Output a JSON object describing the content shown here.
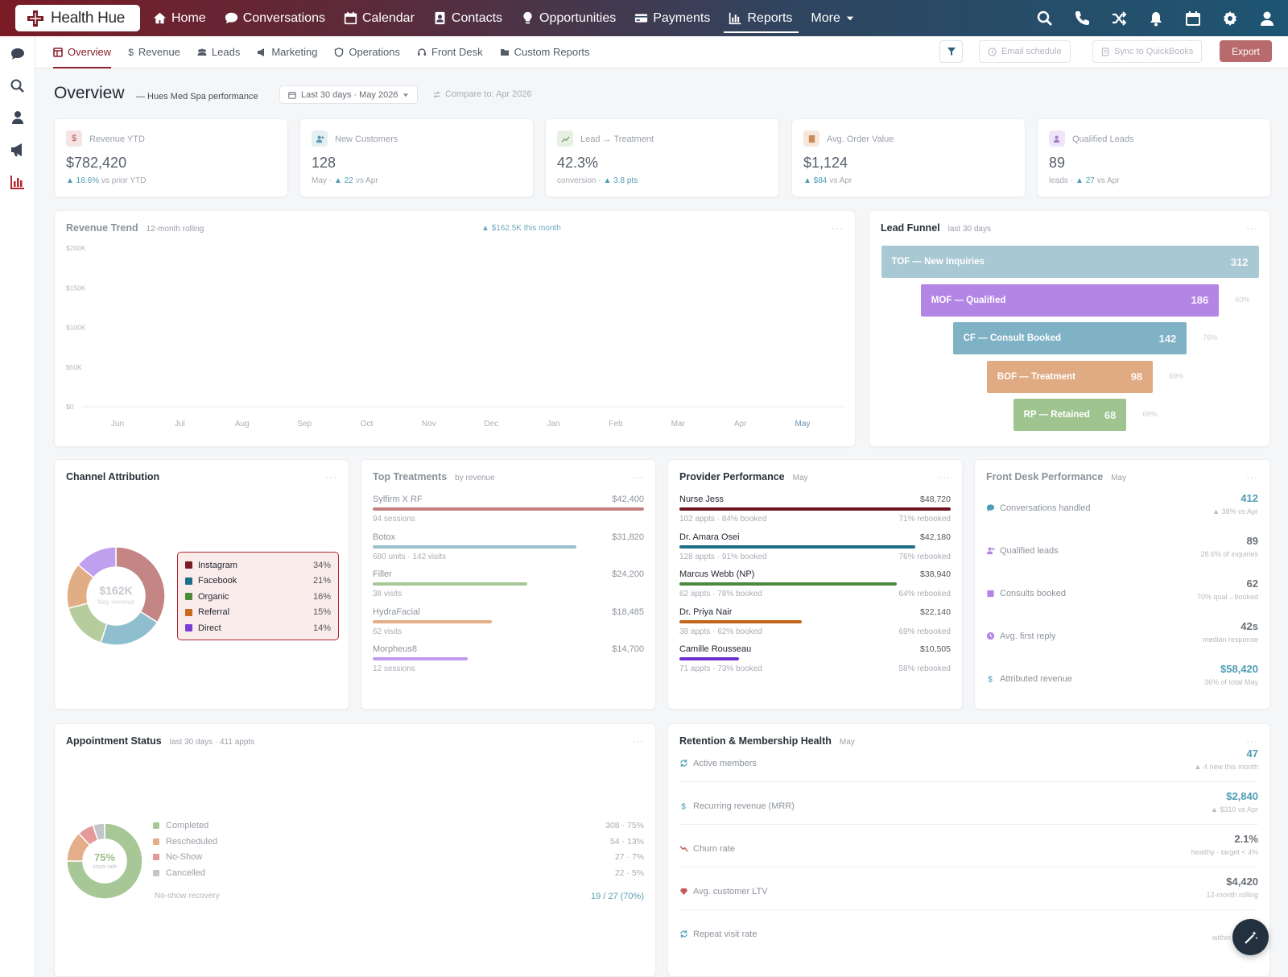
{
  "app": {
    "name": "Health Hue"
  },
  "nav": {
    "items": [
      {
        "label": "Home",
        "icon": "home-icon"
      },
      {
        "label": "Conversations",
        "icon": "chat-icon"
      },
      {
        "label": "Calendar",
        "icon": "calendar-icon"
      },
      {
        "label": "Contacts",
        "icon": "contact-card-icon"
      },
      {
        "label": "Opportunities",
        "icon": "lightbulb-icon"
      },
      {
        "label": "Payments",
        "icon": "credit-card-icon"
      },
      {
        "label": "Reports",
        "icon": "bar-chart-icon",
        "active": true
      },
      {
        "label": "More",
        "icon": "caret-down-icon"
      }
    ],
    "right_icons": [
      "search-icon",
      "phone-icon",
      "shuffle-icon",
      "bell-icon",
      "calendar-icon",
      "gear-icon",
      "user-icon"
    ]
  },
  "left_rail": [
    "chat-icon",
    "search-icon",
    "user-icon",
    "megaphone-icon",
    "bar-chart-icon"
  ],
  "subnav": {
    "tabs": [
      {
        "label": "Overview",
        "icon": "layout-icon",
        "active": true
      },
      {
        "label": "Revenue",
        "icon": "dollar-icon"
      },
      {
        "label": "Leads",
        "icon": "users-icon"
      },
      {
        "label": "Marketing",
        "icon": "megaphone-icon"
      },
      {
        "label": "Operations",
        "icon": "shield-icon"
      },
      {
        "label": "Front Desk",
        "icon": "headset-icon"
      },
      {
        "label": "Custom Reports",
        "icon": "folder-icon"
      }
    ],
    "email_schedule": "Email schedule",
    "sync": "Sync to QuickBooks",
    "export": "Export"
  },
  "header": {
    "title": "Overview",
    "subtitle": "— Hues Med Spa performance",
    "date_range": "Last 30 days · May 2026",
    "compare": "Compare to: Apr 2026"
  },
  "kpis": [
    {
      "label": "Revenue YTD",
      "icon": "$",
      "value": "$782,420",
      "prefix": "",
      "delta": "▲ 18.6%",
      "suffix": "vs prior YTD",
      "tint": "#f6e3e3",
      "color": "#b35a5a"
    },
    {
      "label": "New Customers",
      "icon": "user-plus-icon",
      "value": "128",
      "prefix": "May ·",
      "delta": "▲ 22",
      "suffix": "vs Apr",
      "tint": "#e3eff3",
      "color": "#5b9bb0"
    },
    {
      "label": "Lead → Treatment",
      "icon": "trend-up-icon",
      "value": "42.3%",
      "prefix": "conversion ·",
      "delta": "▲ 3.8 pts",
      "suffix": "",
      "tint": "#e6f0e3",
      "color": "#7aa36a"
    },
    {
      "label": "Avg. Order Value",
      "icon": "receipt-icon",
      "value": "$1,124",
      "prefix": "",
      "delta": "▲ $84",
      "suffix": "vs Apr",
      "tint": "#f7e7da",
      "color": "#c98a5b"
    },
    {
      "label": "Qualified Leads",
      "icon": "user-check-icon",
      "value": "89",
      "prefix": "leads ·",
      "delta": "▲ 27",
      "suffix": "vs Apr",
      "tint": "#efe5f7",
      "color": "#a57ad0"
    }
  ],
  "revenue_trend": {
    "title": "Revenue Trend",
    "hint": "12-month rolling",
    "callout": "▲ $162.5K this month"
  },
  "chart_data": {
    "type": "line",
    "title": "Revenue Trend",
    "categories": [
      "Jun",
      "Jul",
      "Aug",
      "Sep",
      "Oct",
      "Nov",
      "Dec",
      "Jan",
      "Feb",
      "Mar",
      "Apr",
      "May"
    ],
    "y_ticks": [
      "$200K",
      "$150K",
      "$100K",
      "$50K",
      "$0"
    ],
    "ylim": [
      0,
      200000
    ],
    "grid": false,
    "series": []
  },
  "funnel": {
    "title": "Lead Funnel",
    "hint": "last 30 days",
    "stages": [
      {
        "label": "TOF — New Inquiries",
        "value": "312",
        "pct": "",
        "fraction": 1.0,
        "color": "#a8c8d4"
      },
      {
        "label": "MOF — Qualified",
        "value": "186",
        "pct": "60%",
        "fraction": 0.79,
        "color": "#b386e6"
      },
      {
        "label": "CF — Consult Booked",
        "value": "142",
        "pct": "76%",
        "fraction": 0.62,
        "color": "#7fb2c4"
      },
      {
        "label": "BOF — Treatment",
        "value": "98",
        "pct": "69%",
        "fraction": 0.44,
        "color": "#e0aa82"
      },
      {
        "label": "RP — Retained",
        "value": "68",
        "pct": "69%",
        "fraction": 0.3,
        "color": "#9fc48f"
      }
    ]
  },
  "channel": {
    "title": "Channel Attribution",
    "center_value": "$162K",
    "center_label": "May revenue",
    "items": [
      {
        "label": "Instagram",
        "pct": "34%",
        "value": 34,
        "color": "#7a1c26",
        "ring": "#c48585"
      },
      {
        "label": "Facebook",
        "pct": "21%",
        "value": 21,
        "color": "#1c6f8a",
        "ring": "#8fbfce"
      },
      {
        "label": "Organic",
        "pct": "16%",
        "value": 16,
        "color": "#4a8a3a",
        "ring": "#b6cc9c"
      },
      {
        "label": "Referral",
        "pct": "15%",
        "value": 15,
        "color": "#c76a1e",
        "ring": "#e1ad85"
      },
      {
        "label": "Direct",
        "pct": "14%",
        "value": 14,
        "color": "#7b3fd6",
        "ring": "#bfa0ef"
      }
    ]
  },
  "treatments": {
    "title": "Top Treatments",
    "hint": "by revenue",
    "items": [
      {
        "name": "Sylfirm X RF",
        "value": "$42,400",
        "sub": "94 sessions",
        "fraction": 1.0,
        "color": "#c48080"
      },
      {
        "name": "Botox",
        "value": "$31,820",
        "sub": "680 units · 142 visits",
        "fraction": 0.75,
        "color": "#9ac0ce"
      },
      {
        "name": "Filler",
        "value": "$24,200",
        "sub": "38 visits",
        "fraction": 0.57,
        "color": "#a7c896"
      },
      {
        "name": "HydraFacial",
        "value": "$18,485",
        "sub": "62 visits",
        "fraction": 0.44,
        "color": "#e3ae88"
      },
      {
        "name": "Morpheus8",
        "value": "$14,700",
        "sub": "12 sessions",
        "fraction": 0.35,
        "color": "#c29af0"
      }
    ]
  },
  "providers": {
    "title": "Provider Performance",
    "hint": "May",
    "items": [
      {
        "name": "Nurse Jess",
        "value": "$48,720",
        "left": "102 appts · 84% booked",
        "right": "71% rebooked",
        "fraction": 1.0,
        "color": "#6e1520"
      },
      {
        "name": "Dr. Amara Osei",
        "value": "$42,180",
        "left": "128 appts · 91% booked",
        "right": "76% rebooked",
        "fraction": 0.87,
        "color": "#1d6f88"
      },
      {
        "name": "Marcus Webb (NP)",
        "value": "$38,940",
        "left": "62 appts · 78% booked",
        "right": "64% rebooked",
        "fraction": 0.8,
        "color": "#4b8a3b"
      },
      {
        "name": "Dr. Priya Nair",
        "value": "$22,140",
        "left": "38 appts · 62% booked",
        "right": "69% rebooked",
        "fraction": 0.45,
        "color": "#c4651c"
      },
      {
        "name": "Camille Rousseau",
        "value": "$10,505",
        "left": "71 appts · 73% booked",
        "right": "58% rebooked",
        "fraction": 0.22,
        "color": "#6d2fd0"
      }
    ]
  },
  "front_desk": {
    "title": "Front Desk Performance",
    "hint": "May",
    "items": [
      {
        "label": "Conversations handled",
        "icon": "chat-icon",
        "value": "412",
        "sub": "▲ 38% vs Apr",
        "color": "#4e9cb5"
      },
      {
        "label": "Qualified leads",
        "icon": "user-plus-icon",
        "value": "89",
        "sub": "28.6% of inquiries",
        "color": "#b386e6"
      },
      {
        "label": "Consults booked",
        "icon": "calendar-icon",
        "value": "62",
        "sub": "70% qual→booked",
        "color": "#b386e6"
      },
      {
        "label": "Avg. first reply",
        "icon": "clock-icon",
        "value": "42s",
        "sub": "median response",
        "color": "#b386e6"
      },
      {
        "label": "Attributed revenue",
        "icon": "dollar-icon",
        "value": "$58,420",
        "sub": "36% of total May",
        "color": "#4e9cb5"
      }
    ]
  },
  "appointments": {
    "title": "Appointment Status",
    "hint": "last 30 days · 411 appts",
    "center_value": "75%",
    "center_label": "show rate",
    "items": [
      {
        "label": "Completed",
        "value": "308 · 75%",
        "count": 75,
        "color": "#a7c896"
      },
      {
        "label": "Rescheduled",
        "value": "54 · 13%",
        "count": 13,
        "color": "#e3ae88"
      },
      {
        "label": "No-Show",
        "value": "27 · 7%",
        "count": 7,
        "color": "#e59a9a"
      },
      {
        "label": "Cancelled",
        "value": "22 · 5%",
        "count": 5,
        "color": "#c2c5ca"
      }
    ],
    "recovery_label": "No-show recovery",
    "recovery_value": "19 / 27 (70%)"
  },
  "retention": {
    "title": "Retention & Membership Health",
    "hint": "May",
    "items": [
      {
        "label": "Active members",
        "icon": "refresh-icon",
        "value": "47",
        "sub": "▲ 4 new this month",
        "color": "#4e9cb5"
      },
      {
        "label": "Recurring revenue (MRR)",
        "icon": "dollar-icon",
        "value": "$2,840",
        "sub": "▲ $310 vs Apr",
        "color": "#4e9cb5"
      },
      {
        "label": "Churn rate",
        "icon": "trend-down-icon",
        "value": "2.1%",
        "sub": "healthy · target < 4%",
        "color": "#c45a5a"
      },
      {
        "label": "Avg. customer LTV",
        "icon": "gem-icon",
        "value": "$4,420",
        "sub": "12-month rolling",
        "color": "#c45a5a"
      },
      {
        "label": "Repeat visit rate",
        "icon": "repeat-icon",
        "value": "",
        "sub": "within 90 days",
        "color": "#4e9cb5"
      }
    ]
  }
}
